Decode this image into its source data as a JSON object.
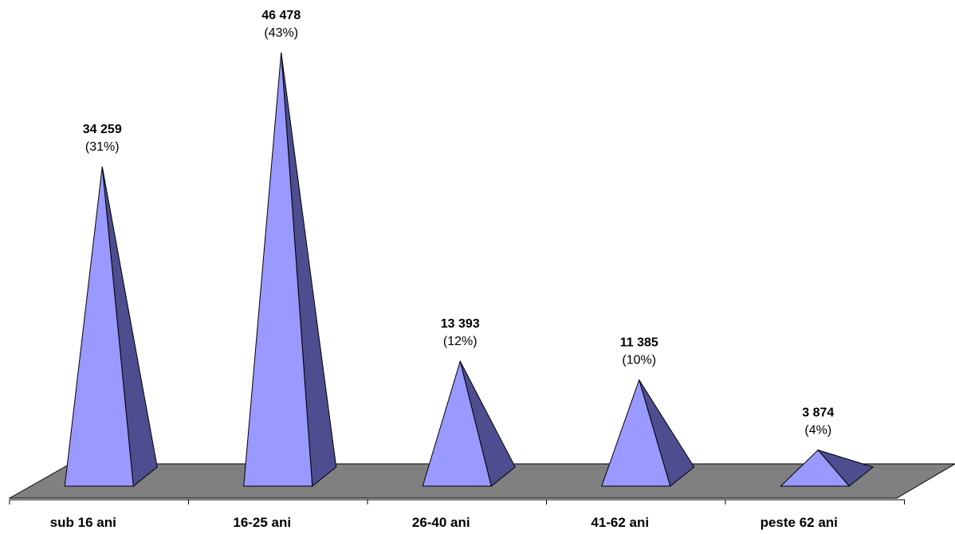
{
  "chart_data": {
    "type": "bar",
    "shape": "pyramid",
    "categories": [
      "sub 16 ani",
      "16-25 ani",
      "26-40 ani",
      "41-62 ani",
      "peste 62 ani"
    ],
    "values": [
      34259,
      46478,
      13393,
      11385,
      3874
    ],
    "value_labels": [
      "34 259",
      "46 478",
      "13 393",
      "11 385",
      "3 874"
    ],
    "percent_labels": [
      "(31%)",
      "(43%)",
      "(12%)",
      "(10%)",
      "(4%)"
    ],
    "title": "",
    "xlabel": "",
    "ylabel": "",
    "ylim": [
      0,
      46478
    ],
    "grid": false,
    "legend": "none",
    "colors": {
      "front_face": "#9999ff",
      "side_face": "#4d4d8f",
      "floor": "#808080",
      "outline": "#000000"
    }
  }
}
